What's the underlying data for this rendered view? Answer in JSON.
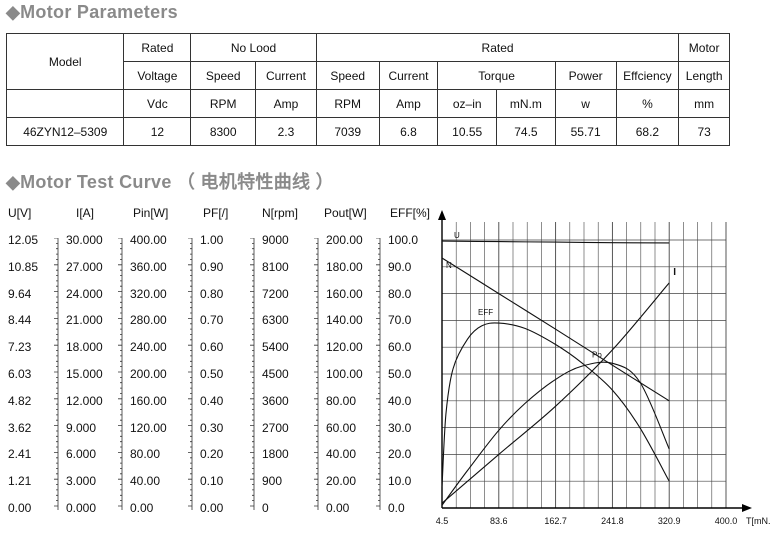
{
  "sections": {
    "params_title": "◆Motor Parameters",
    "curve_title": "◆Motor Test Curve （ 电机特性曲线 ）"
  },
  "params_table": {
    "head1": {
      "rated": "Rated",
      "noload": "No Lood",
      "rated2": "Rated",
      "motor": "Motor"
    },
    "model_label": "Model",
    "head2": {
      "voltage": "Voltage",
      "speed": "Speed",
      "current": "Current",
      "speed2": "Speed",
      "current2": "Current",
      "torque": "Torque",
      "power": "Power",
      "efficiency": "Effciency",
      "length": "Length"
    },
    "units": [
      "Vdc",
      "RPM",
      "Amp",
      "RPM",
      "Amp",
      "oz–in",
      "mN.m",
      "w",
      "%",
      "mm"
    ],
    "row": [
      "46ZYN12–5309",
      "12",
      "8300",
      "2.3",
      "7039",
      "6.8",
      "10.55",
      "74.5",
      "55.71",
      "68.2",
      "73"
    ]
  },
  "chart_data": {
    "type": "line",
    "x_axis": {
      "label": "T[mN.m]",
      "ticks": [
        "4.5",
        "83.6",
        "162.7",
        "241.8",
        "320.9",
        "400.0"
      ],
      "range": [
        4.5,
        400.0
      ]
    },
    "y_axes": [
      {
        "label": "U[V]",
        "ticks": [
          "12.05",
          "10.85",
          "9.64",
          "8.44",
          "7.23",
          "6.03",
          "4.82",
          "3.62",
          "2.41",
          "1.21",
          "0.00"
        ]
      },
      {
        "label": "I[A]",
        "ticks": [
          "30.000",
          "27.000",
          "24.000",
          "21.000",
          "18.000",
          "15.000",
          "12.000",
          "9.000",
          "6.000",
          "3.000",
          "0.000"
        ]
      },
      {
        "label": "Pin[W]",
        "ticks": [
          "400.00",
          "360.00",
          "320.00",
          "280.00",
          "240.00",
          "200.00",
          "160.00",
          "120.00",
          "80.00",
          "40.00",
          "0.00"
        ]
      },
      {
        "label": "PF[/]",
        "ticks": [
          "1.00",
          "0.90",
          "0.80",
          "0.70",
          "0.60",
          "0.50",
          "0.40",
          "0.30",
          "0.20",
          "0.10",
          "0.00"
        ]
      },
      {
        "label": "N[rpm]",
        "ticks": [
          "9000",
          "8100",
          "7200",
          "6300",
          "5400",
          "4500",
          "3600",
          "2700",
          "1800",
          "900",
          "0"
        ]
      },
      {
        "label": "Pout[W]",
        "ticks": [
          "200.00",
          "180.00",
          "160.00",
          "140.00",
          "120.00",
          "100.00",
          "80.00",
          "60.00",
          "40.00",
          "20.00",
          "0.00"
        ]
      },
      {
        "label": "EFF[%]",
        "ticks": [
          "100.0",
          "90.0",
          "80.0",
          "70.0",
          "60.0",
          "50.0",
          "40.0",
          "30.0",
          "20.0",
          "10.0",
          "0.0"
        ]
      }
    ],
    "y_range": [
      0,
      100
    ],
    "grid": true,
    "series": [
      {
        "name": "U",
        "x": [
          4.5,
          83.6,
          162.7,
          241.8,
          320.9
        ],
        "y": [
          99.6,
          99.4,
          99.2,
          99.0,
          98.9
        ]
      },
      {
        "name": "N",
        "x": [
          4.5,
          83.6,
          162.7,
          241.8,
          320.9
        ],
        "y": [
          93.3,
          80.0,
          66.7,
          53.3,
          40.0
        ]
      },
      {
        "name": "I",
        "x": [
          4.5,
          83.6,
          162.7,
          241.8,
          320.9
        ],
        "y": [
          1.8,
          20.0,
          38.0,
          59.0,
          84.0
        ]
      },
      {
        "name": "EFF",
        "x": [
          4.5,
          10,
          20,
          40,
          60,
          83.6,
          120,
          162.7,
          200,
          241.8,
          280,
          320.9
        ],
        "y": [
          8.0,
          35.0,
          52.0,
          63.0,
          68.0,
          69.0,
          67.0,
          61.0,
          54.0,
          44.0,
          30.0,
          10.0
        ]
      },
      {
        "name": "Po",
        "x": [
          4.5,
          40,
          83.6,
          120,
          162.7,
          200,
          241.8,
          280,
          320.9
        ],
        "y": [
          1.0,
          14.0,
          29.0,
          39.0,
          48.0,
          53.0,
          54.0,
          47.0,
          22.0
        ]
      }
    ]
  }
}
